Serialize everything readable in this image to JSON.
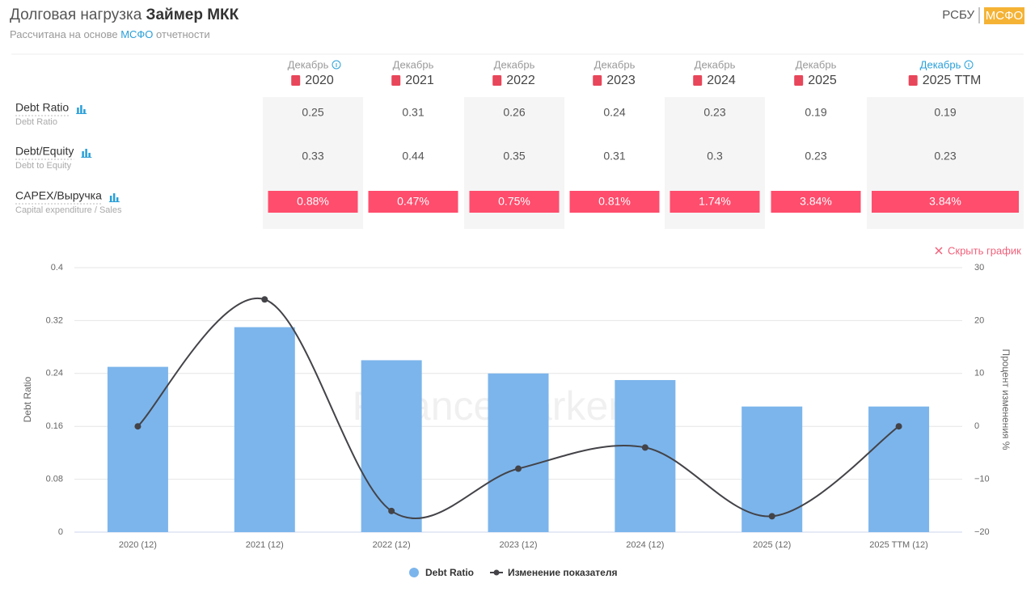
{
  "header": {
    "title_prefix": "Долговая нагрузка",
    "title_company": "Займер МКК",
    "subtitle_prefix": "Рассчитана на основе",
    "subtitle_link": "МСФО",
    "subtitle_suffix": "отчетности",
    "standards": [
      "РСБУ",
      "МСФО"
    ]
  },
  "table": {
    "columns": [
      {
        "month": "Декабрь",
        "year": "2020"
      },
      {
        "month": "Декабрь",
        "year": "2021"
      },
      {
        "month": "Декабрь",
        "year": "2022"
      },
      {
        "month": "Декабрь",
        "year": "2023"
      },
      {
        "month": "Декабрь",
        "year": "2024"
      },
      {
        "month": "Декабрь",
        "year": "2025"
      },
      {
        "month": "Декабрь",
        "year": "2025 TTM"
      }
    ],
    "rows": [
      {
        "name": "Debt Ratio",
        "description": "Debt Ratio",
        "values": [
          0.25,
          0.31,
          0.26,
          0.24,
          0.23,
          0.19,
          0.19
        ]
      },
      {
        "name": "Debt/Equity",
        "description": "Debt to Equity",
        "values": [
          0.33,
          0.44,
          0.35,
          0.31,
          0.3,
          0.23,
          0.23
        ]
      },
      {
        "name": "CAPEX/Выручка",
        "description": "Capital expenditure / Sales",
        "values": [
          0.88,
          0.47,
          0.75,
          0.81,
          1.74,
          3.84,
          3.84
        ],
        "value_labels": [
          "0.88%",
          "0.47%",
          "0.75%",
          "0.81%",
          "1.74%",
          "3.84%",
          "3.84%"
        ]
      }
    ]
  },
  "hide_chart": "Скрыть график",
  "watermark": "FinanceMarker.ru",
  "chart_data": {
    "type": "bar_line",
    "categories": [
      "2020 (12)",
      "2021 (12)",
      "2022 (12)",
      "2023 (12)",
      "2024 (12)",
      "2025 (12)",
      "2025 TTM (12)"
    ],
    "series": [
      {
        "name": "Debt Ratio",
        "color": "#7cb5ec",
        "values": [
          0.25,
          0.31,
          0.26,
          0.24,
          0.23,
          0.19,
          0.19
        ]
      },
      {
        "name": "Изменение показателя",
        "color": "#434348",
        "axis": "y2",
        "values": [
          0,
          24,
          -16,
          -8,
          -4,
          -17,
          0
        ]
      }
    ],
    "ylim": [
      0,
      0.4
    ],
    "yticks": [
      0,
      0.08,
      0.16,
      0.24,
      0.32,
      0.4
    ],
    "y2lim": [
      -20,
      30
    ],
    "y2ticks": [
      {
        "value": -20,
        "label": "−20"
      },
      {
        "value": -10,
        "label": "−10"
      },
      0,
      10,
      20,
      30
    ],
    "ylabel": "Debt Ratio",
    "y2label": "Процент изменения %",
    "grid": true
  }
}
